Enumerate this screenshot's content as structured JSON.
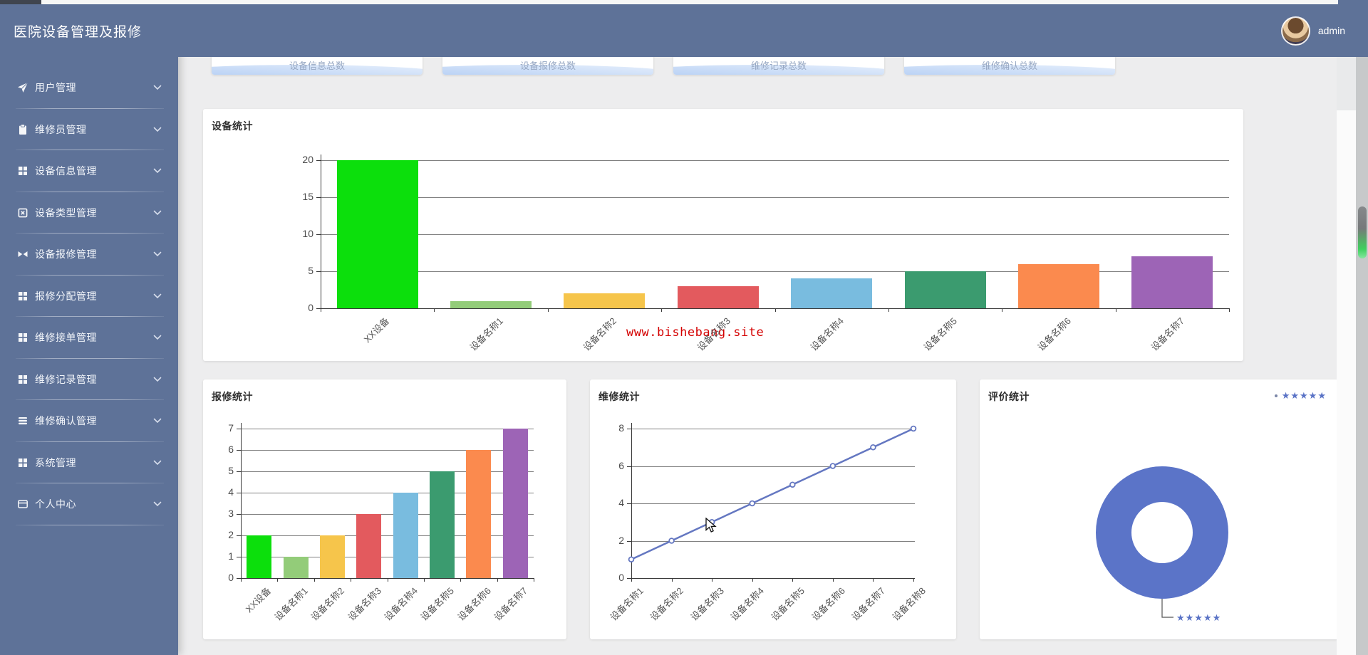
{
  "header": {
    "title": "医院设备管理及报修",
    "username": "admin"
  },
  "sidebar": {
    "items": [
      {
        "label": "用户管理",
        "icon": "send-icon"
      },
      {
        "label": "维修员管理",
        "icon": "clipboard-icon"
      },
      {
        "label": "设备信息管理",
        "icon": "grid-icon"
      },
      {
        "label": "设备类型管理",
        "icon": "x-square-icon"
      },
      {
        "label": "设备报修管理",
        "icon": "bowtie-icon"
      },
      {
        "label": "报修分配管理",
        "icon": "grid-icon"
      },
      {
        "label": "维修接单管理",
        "icon": "grid-icon"
      },
      {
        "label": "维修记录管理",
        "icon": "grid-icon"
      },
      {
        "label": "维修确认管理",
        "icon": "list-icon"
      },
      {
        "label": "系统管理",
        "icon": "grid-icon"
      },
      {
        "label": "个人中心",
        "icon": "card-icon"
      }
    ]
  },
  "stat_cards": [
    {
      "label": "设备信息总数"
    },
    {
      "label": "设备报修总数"
    },
    {
      "label": "维修记录总数"
    },
    {
      "label": "维修确认总数"
    }
  ],
  "watermark": "www.bishebang.site",
  "chart_data": [
    {
      "id": "device",
      "type": "bar",
      "title": "设备统计",
      "categories": [
        "XX设备",
        "设备名称1",
        "设备名称2",
        "设备名称3",
        "设备名称4",
        "设备名称5",
        "设备名称6",
        "设备名称7"
      ],
      "values": [
        20,
        1,
        2,
        3,
        4,
        5,
        6,
        7
      ],
      "bar_colors": [
        "#0cdf0c",
        "#93cc79",
        "#f6c54b",
        "#e35a5e",
        "#79bcdf",
        "#3b9b6f",
        "#fb8a4e",
        "#9d64b6"
      ],
      "ylim": [
        0,
        20
      ],
      "yticks": [
        0,
        5,
        10,
        15,
        20
      ],
      "grid": true,
      "legend_position": "none"
    },
    {
      "id": "repair",
      "type": "bar",
      "title": "报修统计",
      "categories": [
        "XX设备",
        "设备名称1",
        "设备名称2",
        "设备名称3",
        "设备名称4",
        "设备名称5",
        "设备名称6",
        "设备名称7"
      ],
      "values": [
        2,
        1,
        2,
        3,
        4,
        5,
        6,
        7
      ],
      "bar_colors": [
        "#0cdf0c",
        "#93cc79",
        "#f6c54b",
        "#e35a5e",
        "#79bcdf",
        "#3b9b6f",
        "#fb8a4e",
        "#9d64b6"
      ],
      "ylim": [
        0,
        7
      ],
      "yticks": [
        0,
        1,
        2,
        3,
        4,
        5,
        6,
        7
      ],
      "grid": true,
      "legend_position": "none"
    },
    {
      "id": "maintain",
      "type": "line",
      "title": "维修统计",
      "categories": [
        "设备名称1",
        "设备名称2",
        "设备名称3",
        "设备名称4",
        "设备名称5",
        "设备名称6",
        "设备名称7",
        "设备名称8"
      ],
      "values": [
        1,
        2,
        3,
        4,
        5,
        6,
        7,
        8
      ],
      "line_color": "#6477c1",
      "marker": "circle",
      "ylim": [
        0,
        8
      ],
      "yticks": [
        0,
        2,
        4,
        6,
        8
      ],
      "grid": true,
      "legend_position": "none"
    },
    {
      "id": "rating",
      "type": "donut",
      "title": "评价统计",
      "slices": [
        {
          "label": "★★★★★",
          "value": 1,
          "color": "#5b74c8"
        }
      ],
      "legend": [
        "★★★★★"
      ],
      "legend_position": "top-right"
    }
  ]
}
